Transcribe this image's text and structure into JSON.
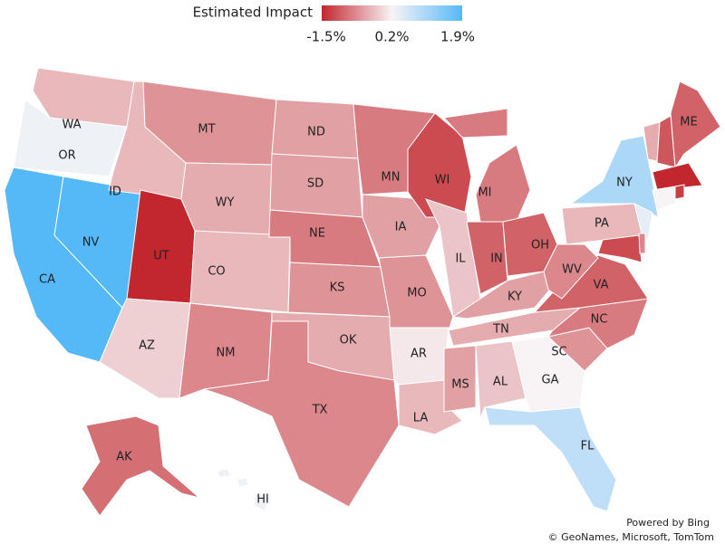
{
  "legend": {
    "title": "Estimated Impact",
    "lim": [
      -1.5,
      1.9
    ],
    "ticks": [
      {
        "value": -1.5,
        "label": "-1.5%"
      },
      {
        "value": 0.2,
        "label": "0.2%"
      },
      {
        "value": 1.9,
        "label": "1.9%"
      }
    ],
    "colors": [
      "#c1272d",
      "#f8f4f6",
      "#55b9f8"
    ]
  },
  "states": [
    {
      "label": "WA",
      "value": -0.3
    },
    {
      "label": "OR",
      "value": 0.3
    },
    {
      "label": "CA",
      "value": 1.9
    },
    {
      "label": "NV",
      "value": 1.9
    },
    {
      "label": "ID",
      "value": -0.3
    },
    {
      "label": "MT",
      "value": -0.6
    },
    {
      "label": "WY",
      "value": -0.4
    },
    {
      "label": "UT",
      "value": -1.5
    },
    {
      "label": "CO",
      "value": -0.3
    },
    {
      "label": "AZ",
      "value": -0.1
    },
    {
      "label": "NM",
      "value": -0.7
    },
    {
      "label": "ND",
      "value": -0.5
    },
    {
      "label": "SD",
      "value": -0.5
    },
    {
      "label": "NE",
      "value": -0.8
    },
    {
      "label": "KS",
      "value": -0.6
    },
    {
      "label": "OK",
      "value": -0.4
    },
    {
      "label": "TX",
      "value": -0.7
    },
    {
      "label": "MN",
      "value": -0.8
    },
    {
      "label": "IA",
      "value": -0.5
    },
    {
      "label": "MO",
      "value": -0.6
    },
    {
      "label": "AR",
      "value": 0.1
    },
    {
      "label": "LA",
      "value": -0.3
    },
    {
      "label": "WI",
      "value": -1.2
    },
    {
      "label": "IL",
      "value": -0.2
    },
    {
      "label": "MI",
      "value": -0.8
    },
    {
      "label": "IN",
      "value": -1.0
    },
    {
      "label": "OH",
      "value": -1.0
    },
    {
      "label": "KY",
      "value": -0.5
    },
    {
      "label": "TN",
      "value": -0.4
    },
    {
      "label": "MS",
      "value": -0.5
    },
    {
      "label": "AL",
      "value": -0.2
    },
    {
      "label": "GA",
      "value": 0.2
    },
    {
      "label": "FL",
      "value": 0.8
    },
    {
      "label": "SC",
      "value": -0.6
    },
    {
      "label": "NC",
      "value": -0.8
    },
    {
      "label": "VA",
      "value": -1.0
    },
    {
      "label": "WV",
      "value": -0.7
    },
    {
      "label": "PA",
      "value": -0.3
    },
    {
      "label": "NY",
      "value": 1.0
    },
    {
      "label": "ME",
      "value": -1.0
    },
    {
      "label": "AK",
      "value": -0.9
    },
    {
      "label": "HI",
      "value": 0.3
    },
    {
      "label": null,
      "value": -0.4
    },
    {
      "label": null,
      "value": -1.1
    },
    {
      "label": null,
      "value": -1.5
    },
    {
      "label": null,
      "value": 0.2
    },
    {
      "label": null,
      "value": 0.4
    },
    {
      "label": null,
      "value": -1.2
    },
    {
      "label": null,
      "value": -0.7
    },
    {
      "label": null,
      "value": -1.3
    }
  ],
  "credits": [
    "Powered by Bing",
    "© GeoNames, Microsoft, TomTom"
  ]
}
